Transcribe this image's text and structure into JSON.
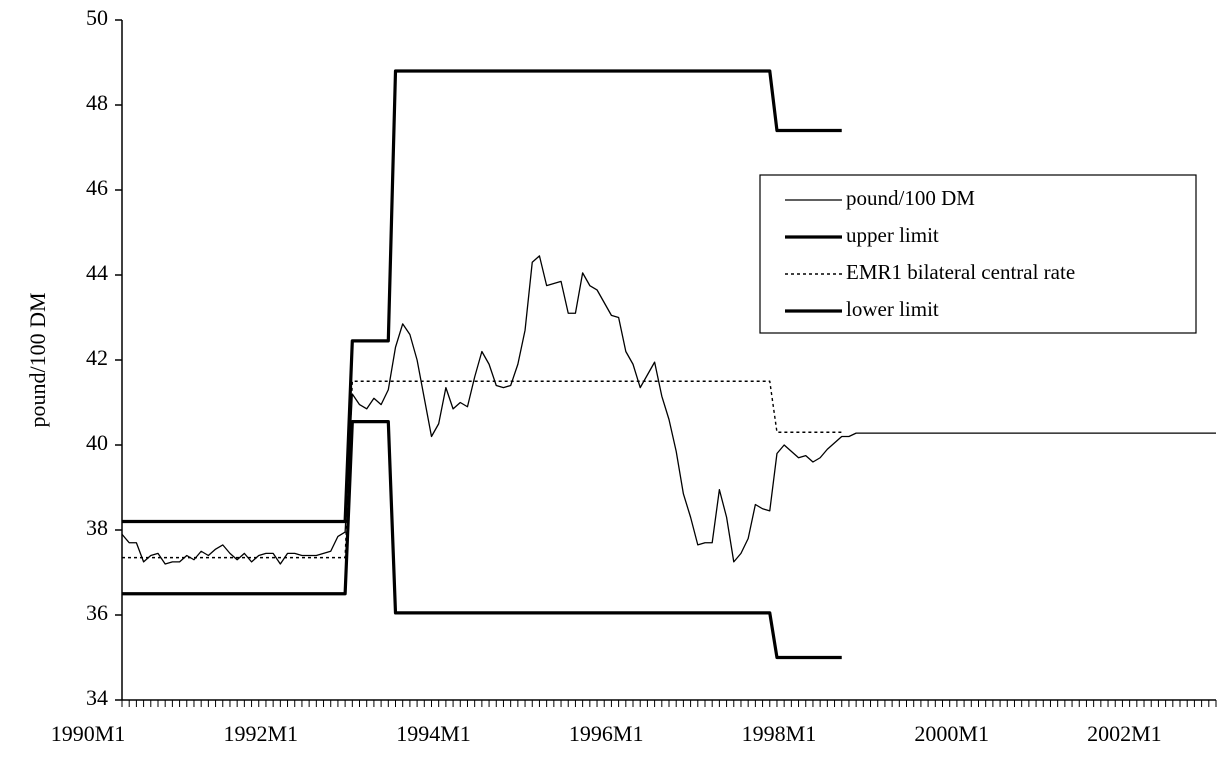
{
  "chart_data": {
    "type": "line",
    "y_label": "pound/100 DM",
    "ylim": [
      34,
      50
    ],
    "yticks": [
      34,
      36,
      38,
      40,
      42,
      44,
      46,
      48,
      50
    ],
    "legend": "right",
    "categories": [
      "1990M1",
      null,
      null,
      null,
      null,
      null,
      null,
      null,
      null,
      null,
      null,
      null,
      null,
      null,
      null,
      null,
      null,
      null,
      null,
      null,
      null,
      null,
      null,
      null,
      "1992M1",
      null,
      null,
      null,
      null,
      null,
      null,
      null,
      null,
      null,
      null,
      null,
      null,
      null,
      null,
      null,
      null,
      null,
      null,
      null,
      null,
      null,
      null,
      null,
      "1994M1",
      null,
      null,
      null,
      null,
      null,
      null,
      null,
      null,
      null,
      null,
      null,
      null,
      null,
      null,
      null,
      null,
      null,
      null,
      null,
      null,
      null,
      null,
      null,
      "1996M1",
      null,
      null,
      null,
      null,
      null,
      null,
      null,
      null,
      null,
      null,
      null,
      null,
      null,
      null,
      null,
      null,
      null,
      null,
      null,
      null,
      null,
      null,
      null,
      "1998M1",
      null,
      null,
      null,
      null,
      null,
      null,
      null,
      null,
      null,
      null,
      null,
      null,
      null,
      null,
      null,
      null,
      null,
      null,
      null,
      null,
      null,
      null,
      null,
      "2000M1",
      null,
      null,
      null,
      null,
      null,
      null,
      null,
      null,
      null,
      null,
      null,
      null,
      null,
      null,
      null,
      null,
      null,
      null,
      null,
      null,
      null,
      null,
      null,
      "2002M1",
      null,
      null,
      null,
      null,
      null,
      null,
      null,
      null
    ],
    "series": [
      {
        "name": "pound/100 DM",
        "color": "#000000",
        "style": "thin",
        "values": [
          37.9,
          37.7,
          37.7,
          37.25,
          37.4,
          37.45,
          37.2,
          37.25,
          37.25,
          37.4,
          37.3,
          37.5,
          37.4,
          37.55,
          37.65,
          37.45,
          37.3,
          37.45,
          37.25,
          37.4,
          37.45,
          37.45,
          37.2,
          37.45,
          37.45,
          37.4,
          37.4,
          37.4,
          37.45,
          37.5,
          37.85,
          37.95,
          41.2,
          40.95,
          40.85,
          41.1,
          40.95,
          41.3,
          42.3,
          42.85,
          42.6,
          42.0,
          41.1,
          40.2,
          40.5,
          41.35,
          40.85,
          41.0,
          40.9,
          41.6,
          42.2,
          41.9,
          41.4,
          41.35,
          41.4,
          41.9,
          42.7,
          44.3,
          44.45,
          43.75,
          43.8,
          43.85,
          43.1,
          43.1,
          44.05,
          43.75,
          43.65,
          43.35,
          43.05,
          43.0,
          42.2,
          41.9,
          41.35,
          41.65,
          41.95,
          41.15,
          40.6,
          39.85,
          38.85,
          38.3,
          37.65,
          37.7,
          37.7,
          38.95,
          38.3,
          37.25,
          37.45,
          37.8,
          38.6,
          38.5,
          38.45,
          39.8,
          40.0,
          39.85,
          39.7,
          39.75,
          39.6,
          39.7,
          39.9,
          40.05,
          40.2,
          40.2,
          40.28,
          40.28,
          40.28,
          40.28,
          40.28,
          40.28,
          40.28,
          40.28,
          40.28,
          40.28,
          40.28,
          40.28,
          40.28,
          40.28,
          40.28,
          40.28,
          40.28,
          40.28,
          40.28,
          40.28,
          40.28,
          40.28,
          40.28,
          40.28,
          40.28,
          40.28,
          40.28,
          40.28,
          40.28,
          40.28,
          40.28,
          40.28,
          40.28,
          40.28,
          40.28,
          40.28,
          40.28,
          40.28,
          40.28,
          40.28,
          40.28,
          40.28,
          40.28,
          40.28,
          40.28,
          40.28,
          40.28,
          40.28,
          40.28,
          40.28,
          40.28
        ]
      },
      {
        "name": "upper limit",
        "color": "#000000",
        "style": "thick",
        "values": [
          38.2,
          38.2,
          38.2,
          38.2,
          38.2,
          38.2,
          38.2,
          38.2,
          38.2,
          38.2,
          38.2,
          38.2,
          38.2,
          38.2,
          38.2,
          38.2,
          38.2,
          38.2,
          38.2,
          38.2,
          38.2,
          38.2,
          38.2,
          38.2,
          38.2,
          38.2,
          38.2,
          38.2,
          38.2,
          38.2,
          38.2,
          38.2,
          42.45,
          42.45,
          42.45,
          42.45,
          42.45,
          42.45,
          48.8,
          48.8,
          48.8,
          48.8,
          48.8,
          48.8,
          48.8,
          48.8,
          48.8,
          48.8,
          48.8,
          48.8,
          48.8,
          48.8,
          48.8,
          48.8,
          48.8,
          48.8,
          48.8,
          48.8,
          48.8,
          48.8,
          48.8,
          48.8,
          48.8,
          48.8,
          48.8,
          48.8,
          48.8,
          48.8,
          48.8,
          48.8,
          48.8,
          48.8,
          48.8,
          48.8,
          48.8,
          48.8,
          48.8,
          48.8,
          48.8,
          48.8,
          48.8,
          48.8,
          48.8,
          48.8,
          48.8,
          48.8,
          48.8,
          48.8,
          48.8,
          48.8,
          48.8,
          47.4,
          47.4,
          47.4,
          47.4,
          47.4,
          47.4,
          47.4,
          47.4,
          47.4,
          47.4,
          null,
          null,
          null,
          null,
          null,
          null,
          null,
          null,
          null,
          null,
          null,
          null,
          null,
          null,
          null,
          null,
          null,
          null,
          null,
          null,
          null,
          null,
          null,
          null,
          null,
          null,
          null,
          null,
          null,
          null,
          null,
          null,
          null,
          null,
          null,
          null,
          null,
          null,
          null,
          null,
          null,
          null,
          null,
          null,
          null,
          null,
          null,
          null,
          null,
          null,
          null,
          null
        ]
      },
      {
        "name": "EMR1 bilateral central rate",
        "color": "#000000",
        "style": "dotted",
        "values": [
          37.35,
          37.35,
          37.35,
          37.35,
          37.35,
          37.35,
          37.35,
          37.35,
          37.35,
          37.35,
          37.35,
          37.35,
          37.35,
          37.35,
          37.35,
          37.35,
          37.35,
          37.35,
          37.35,
          37.35,
          37.35,
          37.35,
          37.35,
          37.35,
          37.35,
          37.35,
          37.35,
          37.35,
          37.35,
          37.35,
          37.35,
          37.35,
          41.5,
          41.5,
          41.5,
          41.5,
          41.5,
          41.5,
          41.5,
          41.5,
          41.5,
          41.5,
          41.5,
          41.5,
          41.5,
          41.5,
          41.5,
          41.5,
          41.5,
          41.5,
          41.5,
          41.5,
          41.5,
          41.5,
          41.5,
          41.5,
          41.5,
          41.5,
          41.5,
          41.5,
          41.5,
          41.5,
          41.5,
          41.5,
          41.5,
          41.5,
          41.5,
          41.5,
          41.5,
          41.5,
          41.5,
          41.5,
          41.5,
          41.5,
          41.5,
          41.5,
          41.5,
          41.5,
          41.5,
          41.5,
          41.5,
          41.5,
          41.5,
          41.5,
          41.5,
          41.5,
          41.5,
          41.5,
          41.5,
          41.5,
          41.5,
          40.3,
          40.3,
          40.3,
          40.3,
          40.3,
          40.3,
          40.3,
          40.3,
          40.3,
          40.3,
          null,
          null,
          null,
          null,
          null,
          null,
          null,
          null,
          null,
          null,
          null,
          null,
          null,
          null,
          null,
          null,
          null,
          null,
          null,
          null,
          null,
          null,
          null,
          null,
          null,
          null,
          null,
          null,
          null,
          null,
          null,
          null,
          null,
          null,
          null,
          null,
          null,
          null,
          null,
          null,
          null,
          null,
          null,
          null,
          null,
          null,
          null,
          null,
          null,
          null,
          null,
          null
        ]
      },
      {
        "name": "lower limit",
        "color": "#000000",
        "style": "thick",
        "values": [
          36.5,
          36.5,
          36.5,
          36.5,
          36.5,
          36.5,
          36.5,
          36.5,
          36.5,
          36.5,
          36.5,
          36.5,
          36.5,
          36.5,
          36.5,
          36.5,
          36.5,
          36.5,
          36.5,
          36.5,
          36.5,
          36.5,
          36.5,
          36.5,
          36.5,
          36.5,
          36.5,
          36.5,
          36.5,
          36.5,
          36.5,
          36.5,
          40.55,
          40.55,
          40.55,
          40.55,
          40.55,
          40.55,
          36.05,
          36.05,
          36.05,
          36.05,
          36.05,
          36.05,
          36.05,
          36.05,
          36.05,
          36.05,
          36.05,
          36.05,
          36.05,
          36.05,
          36.05,
          36.05,
          36.05,
          36.05,
          36.05,
          36.05,
          36.05,
          36.05,
          36.05,
          36.05,
          36.05,
          36.05,
          36.05,
          36.05,
          36.05,
          36.05,
          36.05,
          36.05,
          36.05,
          36.05,
          36.05,
          36.05,
          36.05,
          36.05,
          36.05,
          36.05,
          36.05,
          36.05,
          36.05,
          36.05,
          36.05,
          36.05,
          36.05,
          36.05,
          36.05,
          36.05,
          36.05,
          36.05,
          36.05,
          35.0,
          35.0,
          35.0,
          35.0,
          35.0,
          35.0,
          35.0,
          35.0,
          35.0,
          35.0,
          null,
          null,
          null,
          null,
          null,
          null,
          null,
          null,
          null,
          null,
          null,
          null,
          null,
          null,
          null,
          null,
          null,
          null,
          null,
          null,
          null,
          null,
          null,
          null,
          null,
          null,
          null,
          null,
          null,
          null,
          null,
          null,
          null,
          null,
          null,
          null,
          null,
          null,
          null,
          null,
          null,
          null,
          null,
          null,
          null,
          null,
          null,
          null,
          null,
          null,
          null,
          null
        ]
      }
    ]
  }
}
